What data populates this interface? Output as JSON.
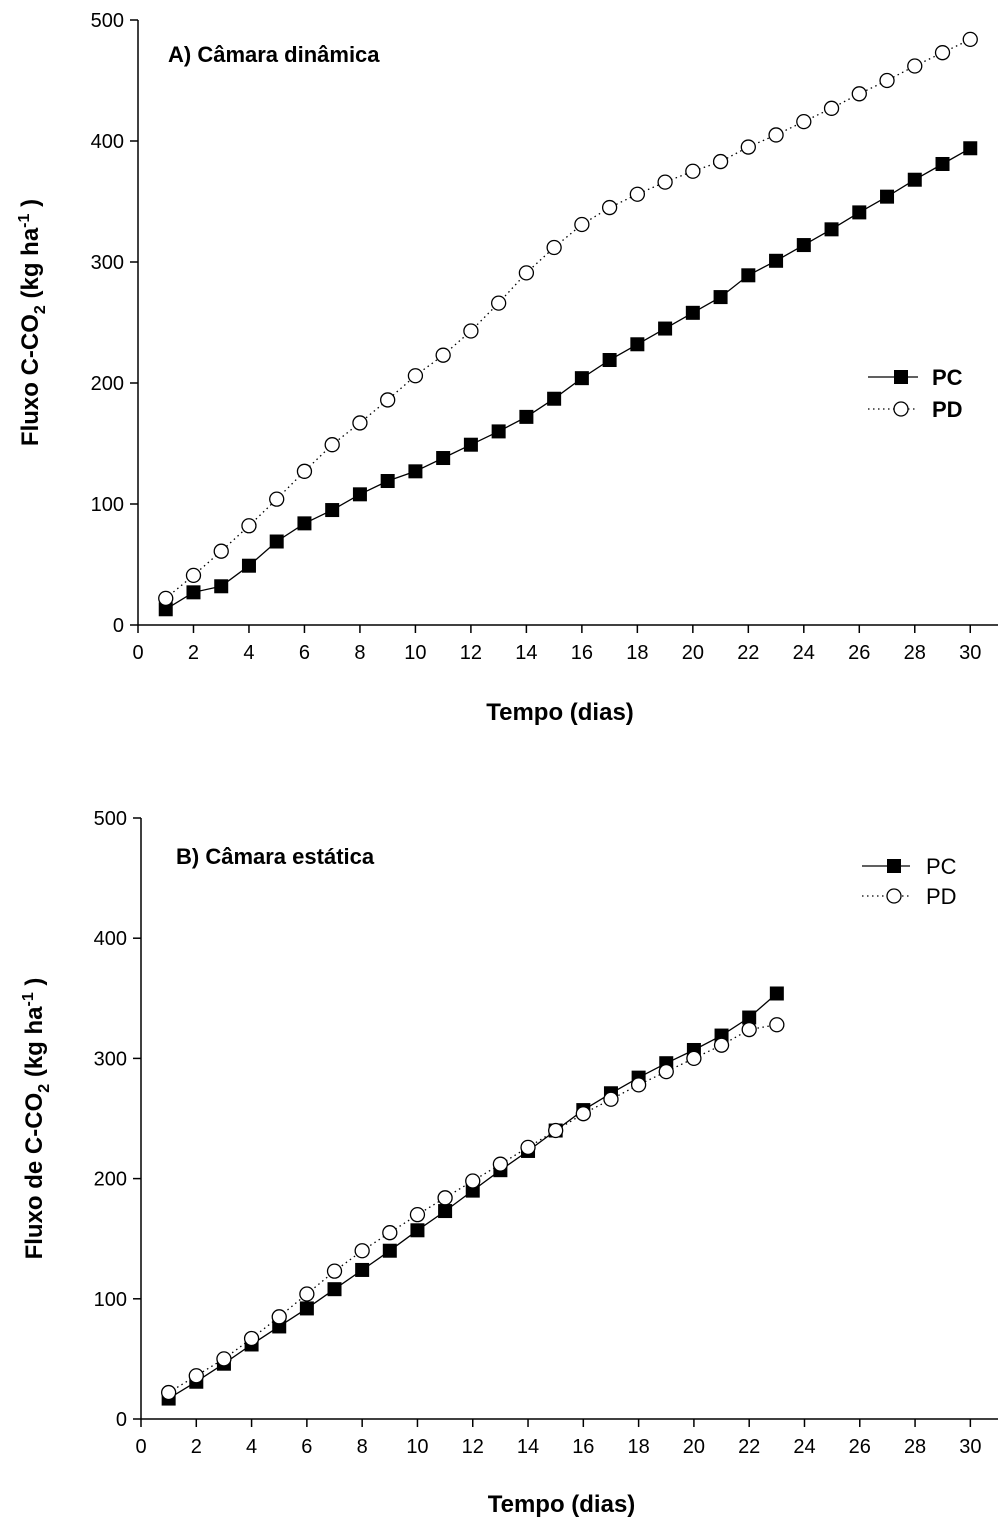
{
  "chart_data": [
    {
      "type": "line",
      "title": "A) Câmara dinâmica",
      "xlabel": "Tempo (dias)",
      "ylabel": {
        "main": "Fluxo C-CO",
        "sub": "2",
        "unit_open": " (kg ha",
        "sup": "-1",
        "unit_close": " )"
      },
      "xlim": [
        0,
        31
      ],
      "ylim": [
        0,
        500
      ],
      "xticks": [
        "0",
        "2",
        "4",
        "6",
        "8",
        "10",
        "12",
        "14",
        "16",
        "18",
        "20",
        "22",
        "24",
        "26",
        "28",
        "30"
      ],
      "yticks": [
        "0",
        "100",
        "200",
        "300",
        "400",
        "500"
      ],
      "legend": {
        "placement": "right",
        "bold": true
      },
      "series": [
        {
          "name": "PC",
          "marker": "filled-square",
          "linestyle": "solid",
          "x": [
            1,
            2,
            3,
            4,
            5,
            6,
            7,
            8,
            9,
            10,
            11,
            12,
            13,
            14,
            15,
            16,
            17,
            18,
            19,
            20,
            21,
            22,
            23,
            24,
            25,
            26,
            27,
            28,
            29,
            30
          ],
          "y": [
            13,
            27,
            32,
            49,
            69,
            84,
            95,
            108,
            119,
            127,
            138,
            149,
            160,
            172,
            187,
            204,
            219,
            232,
            245,
            258,
            271,
            289,
            301,
            314,
            327,
            341,
            354,
            368,
            381,
            394
          ]
        },
        {
          "name": "PD",
          "marker": "open-circle",
          "linestyle": "dotted",
          "x": [
            1,
            2,
            3,
            4,
            5,
            6,
            7,
            8,
            9,
            10,
            11,
            12,
            13,
            14,
            15,
            16,
            17,
            18,
            19,
            20,
            21,
            22,
            23,
            24,
            25,
            26,
            27,
            28,
            29,
            30
          ],
          "y": [
            22,
            41,
            61,
            82,
            104,
            127,
            149,
            167,
            186,
            206,
            223,
            243,
            266,
            291,
            312,
            331,
            345,
            356,
            366,
            375,
            383,
            395,
            405,
            416,
            427,
            439,
            450,
            462,
            473,
            484
          ]
        }
      ]
    },
    {
      "type": "line",
      "title": "B) Câmara estática",
      "xlabel": "Tempo (dias)",
      "ylabel": {
        "main": "Fluxo de C-CO",
        "sub": "2",
        "unit_open": " (kg ha",
        "sup": "-1",
        "unit_close": " )"
      },
      "xlim": [
        0,
        31
      ],
      "ylim": [
        0,
        500
      ],
      "xticks": [
        "0",
        "2",
        "4",
        "6",
        "8",
        "10",
        "12",
        "14",
        "16",
        "18",
        "20",
        "22",
        "24",
        "26",
        "28",
        "30"
      ],
      "yticks": [
        "0",
        "100",
        "200",
        "300",
        "400",
        "500"
      ],
      "legend": {
        "placement": "top-right",
        "bold": false
      },
      "series": [
        {
          "name": "PC",
          "marker": "filled-square",
          "linestyle": "solid",
          "x": [
            1,
            2,
            3,
            4,
            5,
            6,
            7,
            8,
            9,
            10,
            11,
            12,
            13,
            14,
            15,
            16,
            17,
            18,
            19,
            20,
            21,
            22,
            23
          ],
          "y": [
            17,
            31,
            46,
            62,
            77,
            92,
            108,
            124,
            140,
            157,
            173,
            190,
            207,
            223,
            240,
            257,
            271,
            284,
            296,
            307,
            319,
            334,
            354
          ]
        },
        {
          "name": "PD",
          "marker": "open-circle",
          "linestyle": "dotted",
          "x": [
            1,
            2,
            3,
            4,
            5,
            6,
            7,
            8,
            9,
            10,
            11,
            12,
            13,
            14,
            15,
            16,
            17,
            18,
            19,
            20,
            21,
            22,
            23
          ],
          "y": [
            22,
            36,
            50,
            67,
            85,
            104,
            123,
            140,
            155,
            170,
            184,
            198,
            212,
            226,
            240,
            254,
            266,
            278,
            289,
            300,
            311,
            324,
            328
          ]
        }
      ]
    }
  ]
}
